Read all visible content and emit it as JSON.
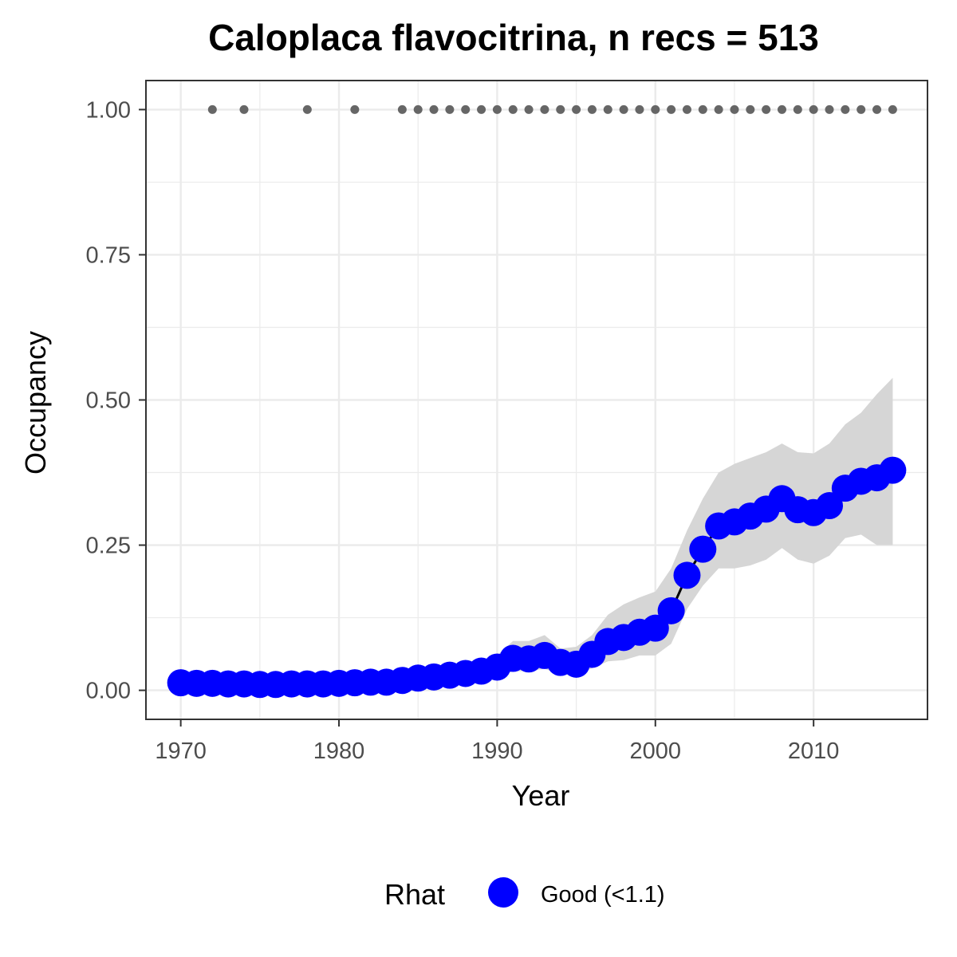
{
  "chart_data": {
    "type": "line",
    "title": "Caloplaca flavocitrina, n recs = 513",
    "xlabel": "Year",
    "ylabel": "Occupancy",
    "xlim": [
      1967.8,
      2017.2
    ],
    "ylim": [
      -0.05,
      1.05
    ],
    "x_ticks": [
      1970,
      1980,
      1990,
      2000,
      2010
    ],
    "x_tick_labels": [
      "1970",
      "1980",
      "1990",
      "2000",
      "2010"
    ],
    "y_ticks": [
      0,
      0.25,
      0.5,
      0.75,
      1.0
    ],
    "y_tick_labels": [
      "0.00",
      "0.25",
      "0.50",
      "0.75",
      "1.00"
    ],
    "grid": true,
    "legend": {
      "title": "Rhat",
      "position": "bottom",
      "entries": [
        {
          "label": "Good (<1.1)",
          "color": "#0000ff"
        }
      ]
    },
    "colors": {
      "series": "#0000ff",
      "line": "#000000",
      "ribbon": "#d6d6d6",
      "records": "#666666",
      "grid": "#ebebeb"
    },
    "series": [
      {
        "name": "Good (<1.1)",
        "x": [
          1970,
          1971,
          1972,
          1973,
          1974,
          1975,
          1976,
          1977,
          1978,
          1979,
          1980,
          1981,
          1982,
          1983,
          1984,
          1985,
          1986,
          1987,
          1988,
          1989,
          1990,
          1991,
          1992,
          1993,
          1994,
          1995,
          1996,
          1997,
          1998,
          1999,
          2000,
          2001,
          2002,
          2003,
          2004,
          2005,
          2006,
          2007,
          2008,
          2009,
          2010,
          2011,
          2012,
          2013,
          2014,
          2015
        ],
        "y": [
          0.013,
          0.012,
          0.012,
          0.011,
          0.011,
          0.01,
          0.01,
          0.011,
          0.011,
          0.011,
          0.012,
          0.013,
          0.014,
          0.014,
          0.017,
          0.021,
          0.023,
          0.026,
          0.029,
          0.033,
          0.04,
          0.055,
          0.054,
          0.06,
          0.048,
          0.045,
          0.062,
          0.084,
          0.091,
          0.1,
          0.107,
          0.137,
          0.198,
          0.243,
          0.283,
          0.29,
          0.3,
          0.312,
          0.33,
          0.311,
          0.306,
          0.318,
          0.348,
          0.36,
          0.366,
          0.379
        ],
        "lower": [
          0.006,
          0.005,
          0.005,
          0.004,
          0.004,
          0.004,
          0.004,
          0.004,
          0.004,
          0.004,
          0.005,
          0.006,
          0.006,
          0.007,
          0.008,
          0.01,
          0.012,
          0.013,
          0.015,
          0.017,
          0.022,
          0.033,
          0.033,
          0.037,
          0.027,
          0.026,
          0.038,
          0.05,
          0.052,
          0.06,
          0.06,
          0.08,
          0.14,
          0.18,
          0.21,
          0.21,
          0.215,
          0.225,
          0.245,
          0.225,
          0.218,
          0.232,
          0.262,
          0.268,
          0.25,
          0.25
        ],
        "upper": [
          0.022,
          0.021,
          0.02,
          0.02,
          0.019,
          0.018,
          0.018,
          0.018,
          0.019,
          0.019,
          0.02,
          0.021,
          0.022,
          0.023,
          0.027,
          0.032,
          0.036,
          0.04,
          0.045,
          0.052,
          0.06,
          0.085,
          0.085,
          0.095,
          0.072,
          0.075,
          0.095,
          0.13,
          0.148,
          0.16,
          0.17,
          0.21,
          0.275,
          0.33,
          0.375,
          0.39,
          0.4,
          0.41,
          0.425,
          0.41,
          0.408,
          0.425,
          0.458,
          0.478,
          0.51,
          0.538
        ]
      }
    ],
    "records": {
      "x": [
        1972,
        1974,
        1978,
        1981,
        1984,
        1985,
        1986,
        1987,
        1988,
        1989,
        1990,
        1991,
        1992,
        1993,
        1994,
        1995,
        1996,
        1997,
        1998,
        1999,
        2000,
        2001,
        2002,
        2003,
        2004,
        2005,
        2006,
        2007,
        2008,
        2009,
        2010,
        2011,
        2012,
        2013,
        2014,
        2015
      ],
      "y": 1.0
    }
  }
}
